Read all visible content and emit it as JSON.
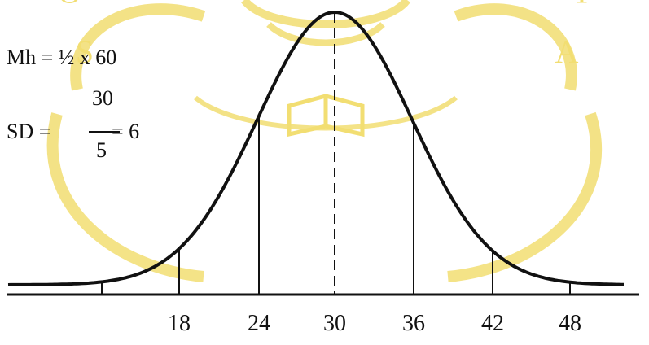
{
  "figure": {
    "mh_formula": "Mh =  ½ x 60",
    "sd_label": "SD =",
    "sd_numerator": "30",
    "sd_denominator": "5",
    "sd_result": "= 6",
    "tick_labels": [
      "18",
      "24",
      "30",
      "36",
      "42",
      "48"
    ],
    "watermark_text": "SOEGIJAPRANATA",
    "watermark_color": "#f2de72",
    "ink_color": "#111111"
  }
}
